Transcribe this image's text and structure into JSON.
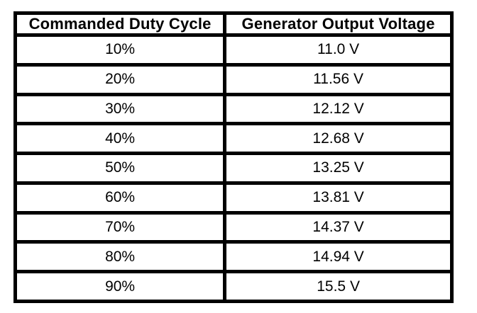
{
  "colors": {
    "border": "#000000",
    "text": "#000000",
    "background": "#ffffff"
  },
  "chart_data": {
    "type": "table",
    "columns": [
      "Commanded Duty Cycle",
      "Generator Output Voltage"
    ],
    "rows": [
      [
        "10%",
        "11.0 V"
      ],
      [
        "20%",
        "11.56 V"
      ],
      [
        "30%",
        "12.12 V"
      ],
      [
        "40%",
        "12.68 V"
      ],
      [
        "50%",
        "13.25 V"
      ],
      [
        "60%",
        "13.81 V"
      ],
      [
        "70%",
        "14.37 V"
      ],
      [
        "80%",
        "14.94 V"
      ],
      [
        "90%",
        "15.5 V"
      ]
    ],
    "duty_cycle_percent": [
      10,
      20,
      30,
      40,
      50,
      60,
      70,
      80,
      90
    ],
    "output_voltage_v": [
      11.0,
      11.56,
      12.12,
      12.68,
      13.25,
      13.81,
      14.37,
      14.94,
      15.5
    ]
  }
}
